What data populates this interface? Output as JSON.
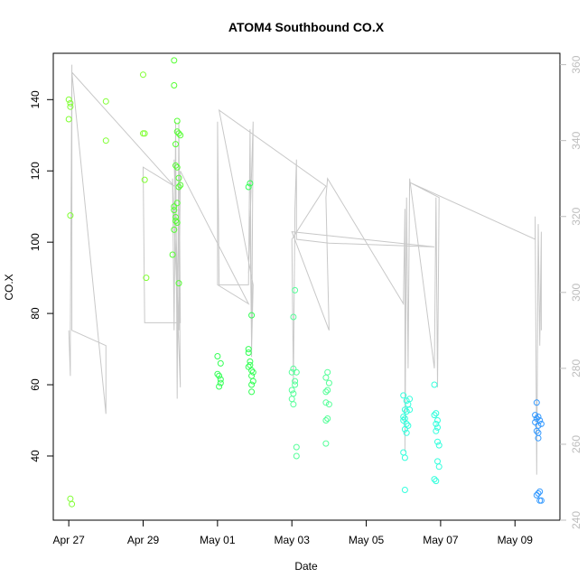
{
  "chart_data": {
    "type": "scatter",
    "title": "ATOM4 Southbound CO.X",
    "xlabel": "Date",
    "ylabel": "CO.X",
    "x_unit": "day",
    "x_ticks": [
      {
        "label": "Apr 27",
        "x": "2017-04-27"
      },
      {
        "label": "Apr 29",
        "x": "2017-04-29"
      },
      {
        "label": "May 01",
        "x": "2017-05-01"
      },
      {
        "label": "May 03",
        "x": "2017-05-03"
      },
      {
        "label": "May 05",
        "x": "2017-05-05"
      },
      {
        "label": "May 07",
        "x": "2017-05-07"
      },
      {
        "label": "May 09",
        "x": "2017-05-09"
      }
    ],
    "xlim": [
      "2017-04-26T14:00",
      "2017-05-10T05:00"
    ],
    "ylim": [
      22,
      153
    ],
    "y_ticks": [
      40,
      60,
      80,
      100,
      120,
      140
    ],
    "y2lim": [
      240,
      363
    ],
    "y2_ticks": [
      240,
      260,
      280,
      300,
      320,
      340,
      360
    ],
    "colors": {
      "frame": "#000000",
      "trace": "#c8c8c8",
      "secondary_axis": "#bdbdbd"
    },
    "series": [
      {
        "type": "scatter",
        "color": "#80ff33",
        "points": [
          [
            "2017-04-27T00:00",
            140
          ],
          [
            "2017-04-27T00:00",
            134.5
          ],
          [
            "2017-04-27T01:00",
            138
          ],
          [
            "2017-04-27T01:00",
            139
          ],
          [
            "2017-04-27T01:00",
            107.5
          ],
          [
            "2017-04-27T01:00",
            28
          ],
          [
            "2017-04-27T02:00",
            26.5
          ],
          [
            "2017-04-28T00:00",
            139.5
          ],
          [
            "2017-04-28T00:00",
            128.5
          ],
          [
            "2017-04-29T00:00",
            147
          ],
          [
            "2017-04-29T00:00",
            130.5
          ],
          [
            "2017-04-29T01:00",
            130.5
          ],
          [
            "2017-04-29T01:00",
            117.5
          ],
          [
            "2017-04-29T02:00",
            90
          ]
        ]
      },
      {
        "type": "scatter",
        "color": "#55ff33",
        "points": [
          [
            "2017-04-29T20:00",
            151
          ],
          [
            "2017-04-29T20:00",
            144
          ],
          [
            "2017-04-29T22:00",
            134
          ],
          [
            "2017-04-29T22:00",
            131
          ],
          [
            "2017-04-29T23:00",
            130.5
          ],
          [
            "2017-04-30T00:00",
            130
          ],
          [
            "2017-04-29T21:00",
            127.5
          ],
          [
            "2017-04-29T21:00",
            121.5
          ],
          [
            "2017-04-29T22:00",
            121
          ],
          [
            "2017-04-29T23:00",
            118
          ],
          [
            "2017-04-30T00:00",
            116
          ],
          [
            "2017-04-29T23:00",
            115.5
          ],
          [
            "2017-04-29T22:00",
            111
          ],
          [
            "2017-04-29T20:00",
            110
          ],
          [
            "2017-04-29T20:00",
            109
          ],
          [
            "2017-04-29T21:00",
            107
          ],
          [
            "2017-04-29T21:00",
            106
          ],
          [
            "2017-04-29T22:00",
            105.5
          ],
          [
            "2017-04-29T20:00",
            103.5
          ],
          [
            "2017-04-29T19:00",
            96.5
          ],
          [
            "2017-04-29T23:00",
            88.5
          ]
        ]
      },
      {
        "type": "scatter",
        "color": "#33ff55",
        "points": [
          [
            "2017-05-01T00:00",
            68
          ],
          [
            "2017-05-01T02:00",
            66
          ],
          [
            "2017-05-01T00:00",
            63
          ],
          [
            "2017-05-01T01:00",
            62.5
          ],
          [
            "2017-05-01T02:00",
            61.5
          ],
          [
            "2017-05-01T02:00",
            60.5
          ],
          [
            "2017-05-01T01:00",
            59.5
          ],
          [
            "2017-05-01T20:00",
            115.5
          ],
          [
            "2017-05-01T21:00",
            116.5
          ],
          [
            "2017-05-01T22:00",
            79.5
          ],
          [
            "2017-05-01T20:00",
            70
          ],
          [
            "2017-05-01T20:00",
            69
          ],
          [
            "2017-05-01T21:00",
            66.5
          ],
          [
            "2017-05-01T21:00",
            65.5
          ],
          [
            "2017-05-01T20:00",
            65
          ],
          [
            "2017-05-01T22:00",
            64
          ],
          [
            "2017-05-01T23:00",
            63.5
          ],
          [
            "2017-05-01T22:00",
            62.5
          ],
          [
            "2017-05-01T23:00",
            61
          ],
          [
            "2017-05-01T22:00",
            60
          ],
          [
            "2017-05-01T22:00",
            58
          ]
        ]
      },
      {
        "type": "scatter",
        "color": "#55ff99",
        "points": [
          [
            "2017-05-03T02:00",
            86.5
          ],
          [
            "2017-05-03T01:00",
            79
          ],
          [
            "2017-05-03T00:00",
            63.5
          ],
          [
            "2017-05-03T01:00",
            64.5
          ],
          [
            "2017-05-03T03:00",
            63.5
          ],
          [
            "2017-05-03T02:00",
            61
          ],
          [
            "2017-05-03T02:00",
            60
          ],
          [
            "2017-05-03T00:00",
            58.5
          ],
          [
            "2017-05-03T01:00",
            57.5
          ],
          [
            "2017-05-03T00:00",
            56
          ],
          [
            "2017-05-03T01:00",
            54.5
          ],
          [
            "2017-05-03T03:00",
            42.5
          ],
          [
            "2017-05-03T03:00",
            40
          ],
          [
            "2017-05-03T23:00",
            63.5
          ],
          [
            "2017-05-03T22:00",
            62
          ],
          [
            "2017-05-04T00:00",
            60.5
          ],
          [
            "2017-05-03T23:00",
            58.5
          ],
          [
            "2017-05-03T22:00",
            58
          ],
          [
            "2017-05-03T22:00",
            55
          ],
          [
            "2017-05-04T00:00",
            54.5
          ],
          [
            "2017-05-03T23:00",
            50.5
          ],
          [
            "2017-05-03T22:00",
            50
          ],
          [
            "2017-05-03T22:00",
            43.5
          ]
        ]
      },
      {
        "type": "scatter",
        "color": "#33ffdd",
        "points": [
          [
            "2017-05-06T00:00",
            57
          ],
          [
            "2017-05-06T04:00",
            56
          ],
          [
            "2017-05-06T02:00",
            55.5
          ],
          [
            "2017-05-06T03:00",
            54.5
          ],
          [
            "2017-05-06T01:00",
            53
          ],
          [
            "2017-05-06T04:00",
            53
          ],
          [
            "2017-05-06T02:00",
            52.5
          ],
          [
            "2017-05-06T00:00",
            51
          ],
          [
            "2017-05-06T01:00",
            50.5
          ],
          [
            "2017-05-06T00:00",
            50
          ],
          [
            "2017-05-06T02:00",
            49
          ],
          [
            "2017-05-06T03:00",
            48.5
          ],
          [
            "2017-05-06T01:00",
            47.5
          ],
          [
            "2017-05-06T02:00",
            46.5
          ],
          [
            "2017-05-06T00:00",
            41
          ],
          [
            "2017-05-06T01:00",
            39.5
          ],
          [
            "2017-05-06T01:00",
            30.5
          ],
          [
            "2017-05-06T20:00",
            60
          ],
          [
            "2017-05-06T21:00",
            52
          ],
          [
            "2017-05-06T20:00",
            51.5
          ],
          [
            "2017-05-06T22:00",
            50
          ],
          [
            "2017-05-06T21:00",
            49
          ],
          [
            "2017-05-06T22:00",
            48
          ],
          [
            "2017-05-06T21:00",
            47
          ],
          [
            "2017-05-06T22:00",
            44
          ],
          [
            "2017-05-06T23:00",
            43
          ],
          [
            "2017-05-06T22:00",
            38.5
          ],
          [
            "2017-05-06T23:00",
            37
          ],
          [
            "2017-05-06T20:00",
            33.5
          ],
          [
            "2017-05-06T21:00",
            33
          ]
        ]
      },
      {
        "type": "scatter",
        "color": "#3399ff",
        "points": [
          [
            "2017-05-09T14:00",
            55
          ],
          [
            "2017-05-09T13:00",
            51.5
          ],
          [
            "2017-05-09T15:00",
            51
          ],
          [
            "2017-05-09T14:00",
            50.5
          ],
          [
            "2017-05-09T16:00",
            50
          ],
          [
            "2017-05-09T13:00",
            49.5
          ],
          [
            "2017-05-09T17:00",
            49
          ],
          [
            "2017-05-09T15:00",
            48.5
          ],
          [
            "2017-05-09T14:00",
            47
          ],
          [
            "2017-05-09T15:00",
            46.5
          ],
          [
            "2017-05-09T15:00",
            45
          ],
          [
            "2017-05-09T16:00",
            30
          ],
          [
            "2017-05-09T15:00",
            29.5
          ],
          [
            "2017-05-09T14:00",
            29
          ],
          [
            "2017-05-09T16:00",
            27.5
          ],
          [
            "2017-05-09T17:00",
            27.5
          ]
        ]
      },
      {
        "type": "line",
        "axis": "right",
        "color": "#c8c8c8",
        "points": [
          [
            "2017-04-27T00:00",
            290
          ],
          [
            "2017-04-27T01:00",
            278
          ],
          [
            "2017-04-27T01:00",
            290
          ],
          [
            "2017-04-27T02:00",
            360
          ],
          [
            "2017-04-27T02:00",
            290
          ],
          [
            "2017-04-28T00:00",
            286
          ],
          [
            "2017-04-28T00:00",
            268
          ],
          [
            "2017-04-27T02:00",
            358
          ],
          [
            "2017-04-29T20:00",
            328
          ],
          [
            "2017-04-29T00:00",
            333
          ],
          [
            "2017-04-29T01:00",
            292
          ],
          [
            "2017-04-30T00:00",
            292
          ],
          [
            "2017-04-29T23:00",
            345
          ],
          [
            "2017-04-29T22:00",
            272
          ],
          [
            "2017-04-29T21:00",
            345
          ],
          [
            "2017-04-29T20:00",
            290
          ],
          [
            "2017-04-29T19:00",
            330
          ],
          [
            "2017-04-30T00:00",
            275
          ],
          [
            "2017-04-29T23:00",
            322
          ],
          [
            "2017-04-29T22:00",
            282
          ],
          [
            "2017-04-29T21:00",
            324
          ],
          [
            "2017-04-29T20:00",
            335
          ],
          [
            "2017-04-29T23:00",
            290
          ],
          [
            "2017-04-30T00:00",
            332
          ],
          [
            "2017-05-01T20:00",
            297
          ],
          [
            "2017-05-01T00:00",
            302
          ],
          [
            "2017-05-01T00:00",
            345
          ],
          [
            "2017-05-01T01:00",
            302
          ],
          [
            "2017-05-01T20:00",
            302
          ],
          [
            "2017-05-01T21:00",
            343
          ],
          [
            "2017-05-01T22:00",
            283
          ],
          [
            "2017-05-01T23:00",
            345
          ],
          [
            "2017-05-01T20:00",
            305
          ],
          [
            "2017-05-01T21:00",
            320
          ],
          [
            "2017-05-01T22:00",
            285
          ],
          [
            "2017-05-01T23:00",
            302
          ],
          [
            "2017-05-01T01:00",
            348
          ],
          [
            "2017-05-03T22:00",
            328
          ],
          [
            "2017-05-03T00:00",
            314
          ],
          [
            "2017-05-03T01:00",
            276
          ],
          [
            "2017-05-03T02:00",
            322
          ],
          [
            "2017-05-03T03:00",
            335
          ],
          [
            "2017-05-03T03:00",
            314
          ],
          [
            "2017-05-04T00:00",
            313
          ],
          [
            "2017-05-06T20:00",
            312
          ],
          [
            "2017-05-03T00:00",
            316
          ],
          [
            "2017-05-04T00:00",
            290
          ],
          [
            "2017-05-03T22:00",
            325
          ],
          [
            "2017-05-03T23:00",
            330
          ],
          [
            "2017-05-06T00:00",
            297
          ],
          [
            "2017-05-06T01:00",
            322
          ],
          [
            "2017-05-06T01:00",
            258
          ],
          [
            "2017-05-06T02:00",
            325
          ],
          [
            "2017-05-06T03:00",
            280
          ],
          [
            "2017-05-06T04:00",
            330
          ],
          [
            "2017-05-06T20:00",
            280
          ],
          [
            "2017-05-06T21:00",
            325
          ],
          [
            "2017-05-06T22:00",
            275
          ],
          [
            "2017-05-06T23:00",
            325
          ],
          [
            "2017-05-06T04:00",
            329
          ],
          [
            "2017-05-09T13:00",
            314
          ],
          [
            "2017-05-09T13:00",
            320
          ],
          [
            "2017-05-09T14:00",
            252
          ],
          [
            "2017-05-09T15:00",
            318
          ],
          [
            "2017-05-09T16:00",
            286
          ],
          [
            "2017-05-09T17:00",
            316
          ],
          [
            "2017-05-09T17:00",
            290
          ]
        ]
      }
    ]
  }
}
